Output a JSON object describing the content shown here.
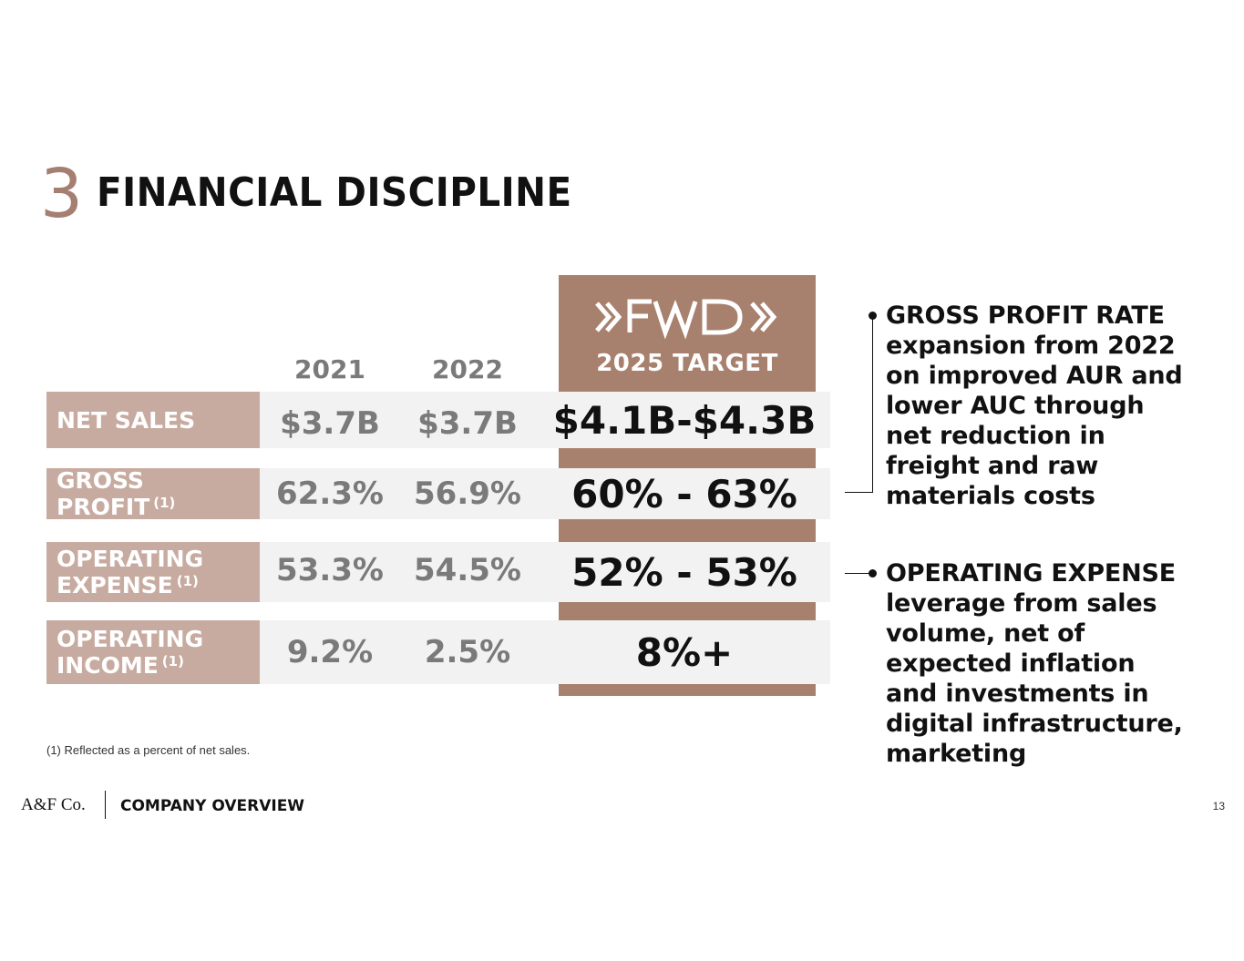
{
  "header": {
    "section_number": "3",
    "title": "FINANCIAL DISCIPLINE"
  },
  "columns": {
    "year1": "2021",
    "year2": "2022",
    "target_label": "2025 TARGET",
    "target_logo": "»FWD»"
  },
  "rows": [
    {
      "label_line1": "NET SALES",
      "label_line2": "",
      "footnote_mark": "",
      "y2021": "$3.7B",
      "y2022": "$3.7B",
      "target": "$4.1B-$4.3B"
    },
    {
      "label_line1": "GROSS PROFIT",
      "label_line2": "",
      "footnote_mark": "(1)",
      "y2021": "62.3%",
      "y2022": "56.9%",
      "target": "60% - 63%"
    },
    {
      "label_line1": "OPERATING",
      "label_line2": "EXPENSE",
      "footnote_mark": "(1)",
      "y2021": "53.3%",
      "y2022": "54.5%",
      "target": "52% - 53%"
    },
    {
      "label_line1": "OPERATING",
      "label_line2": "INCOME",
      "footnote_mark": "(1)",
      "y2021": "9.2%",
      "y2022": "2.5%",
      "target": "8%+"
    }
  ],
  "callouts": [
    {
      "heading": "GROSS PROFIT RATE",
      "body": "expansion from 2022 on improved AUR and lower AUC through net reduction in freight and raw materials costs"
    },
    {
      "heading": "OPERATING EXPENSE",
      "body": "leverage from sales volume, net of expected inflation and investments in digital infrastructure, marketing"
    }
  ],
  "footnote": "(1) Reflected as a percent of net sales.",
  "footer": {
    "logo": "A&F Co.",
    "section": "COMPANY OVERVIEW",
    "page_number": "13"
  },
  "colors": {
    "accent": "#a8806e",
    "label_bg": "#c8aba0",
    "row_bg": "#f2f2f2",
    "section_number": "#a57f71"
  }
}
